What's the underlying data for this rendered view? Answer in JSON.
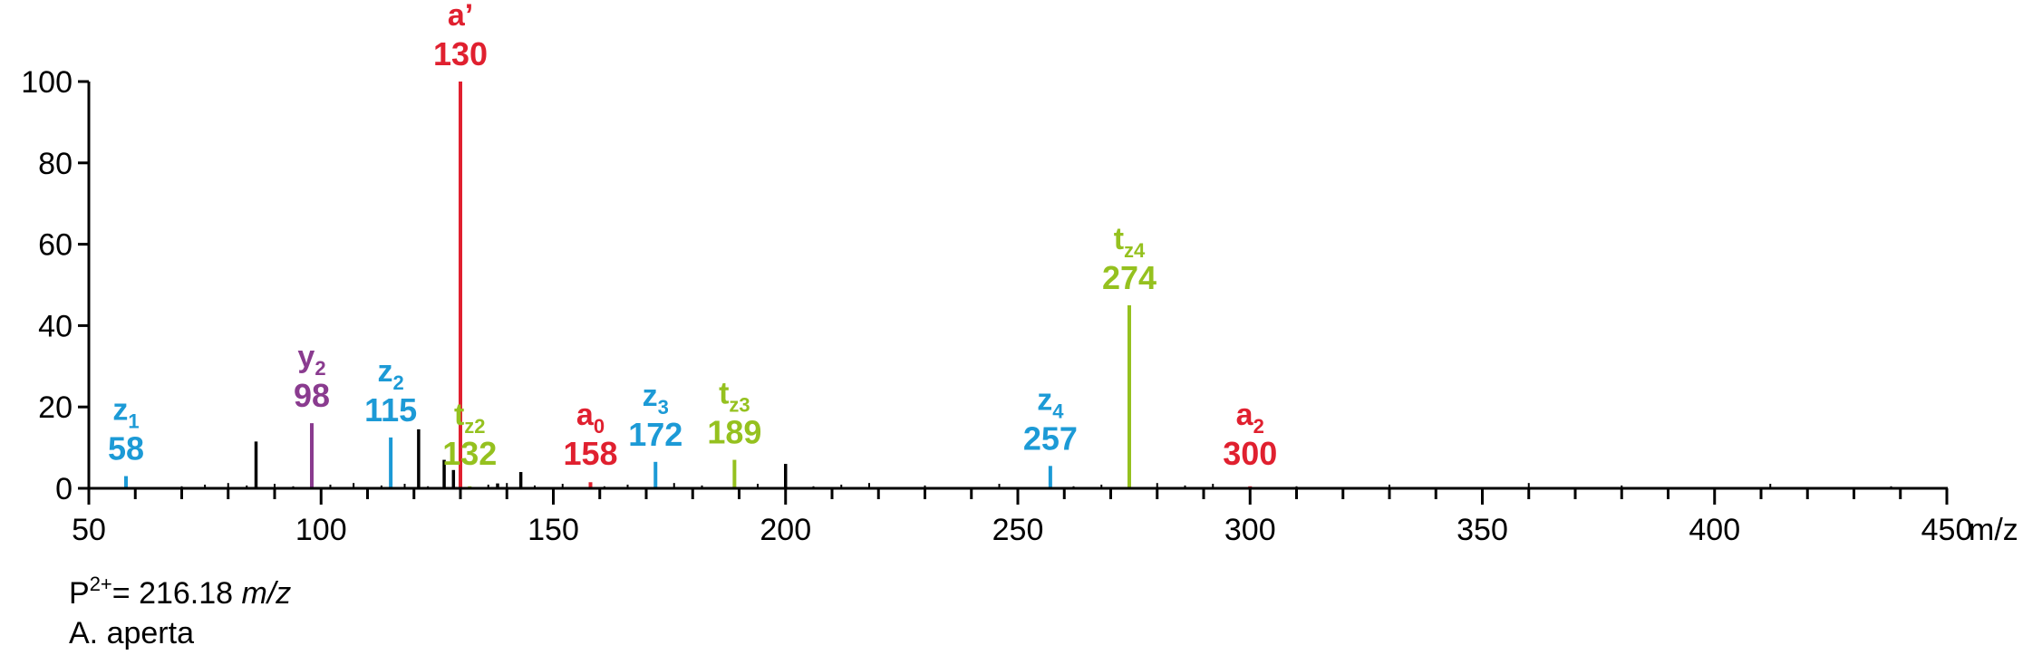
{
  "chart_data": {
    "type": "bar",
    "subtype": "mass-spectrum-sticks",
    "xlim": [
      50,
      450
    ],
    "ylim": [
      0,
      100
    ],
    "x_ticks": [
      50,
      100,
      150,
      200,
      250,
      300,
      350,
      400,
      450
    ],
    "x_tick_labels": [
      "50",
      "100",
      "150",
      "200",
      "250",
      "300",
      "350",
      "400",
      "450"
    ],
    "x_unit": "m/z",
    "y_ticks": [
      0,
      20,
      40,
      60,
      80,
      100
    ],
    "y_tick_labels": [
      "0",
      "20",
      "40",
      "60",
      "80",
      "100"
    ],
    "colors": {
      "black": "#000000",
      "red": "#e0202f",
      "blue": "#1c9ad6",
      "green": "#95c11f",
      "purple": "#8a3b8f"
    },
    "unlabeled_peaks": [
      {
        "x": 86,
        "y": 11.5
      },
      {
        "x": 121,
        "y": 14.5
      },
      {
        "x": 126.5,
        "y": 7
      },
      {
        "x": 128.5,
        "y": 4.5
      },
      {
        "x": 138,
        "y": 1.2
      },
      {
        "x": 143,
        "y": 4
      },
      {
        "x": 200,
        "y": 6
      }
    ],
    "annotated_peaks": [
      {
        "x": 58,
        "y": 3,
        "mz": "58",
        "ion": "z",
        "sub": "1",
        "color": "blue"
      },
      {
        "x": 98,
        "y": 16,
        "mz": "98",
        "ion": "y",
        "sub": "2",
        "color": "purple"
      },
      {
        "x": 115,
        "y": 12.5,
        "mz": "115",
        "ion": "z",
        "sub": "2",
        "color": "blue"
      },
      {
        "x": 130,
        "y": 100,
        "mz": "130",
        "ion": "a’",
        "sub": "",
        "color": "red"
      },
      {
        "x": 132,
        "y": 0.5,
        "mz": "132",
        "ion": "t",
        "sub": "z2",
        "color": "green"
      },
      {
        "x": 158,
        "y": 1.5,
        "mz": "158",
        "ion": "a",
        "sub": "0",
        "color": "red"
      },
      {
        "x": 172,
        "y": 6.5,
        "mz": "172",
        "ion": "z",
        "sub": "3",
        "color": "blue"
      },
      {
        "x": 189,
        "y": 7,
        "mz": "189",
        "ion": "t",
        "sub": "z3",
        "color": "green"
      },
      {
        "x": 257,
        "y": 5.5,
        "mz": "257",
        "ion": "z",
        "sub": "4",
        "color": "blue"
      },
      {
        "x": 274,
        "y": 45,
        "mz": "274",
        "ion": "t",
        "sub": "z4",
        "color": "green"
      },
      {
        "x": 300,
        "y": 0.5,
        "mz": "300",
        "ion": "a",
        "sub": "2",
        "color": "red"
      }
    ],
    "precursor": {
      "prefix": "P",
      "charge": "2+",
      "text": "= 216.18 ",
      "unit": "m/z"
    },
    "sample": "A. aperta"
  }
}
